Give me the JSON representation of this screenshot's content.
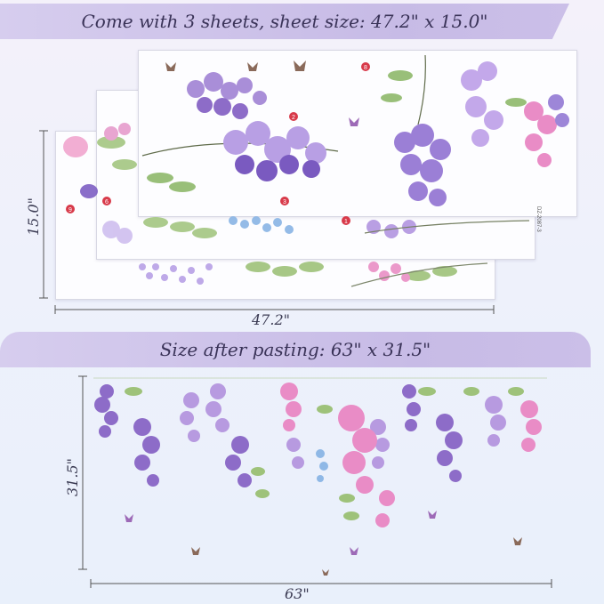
{
  "top_banner": {
    "text": "Come with 3 sheets, sheet size: 47.2\" x 15.0\""
  },
  "sheets_view": {
    "height_label": "15.0\"",
    "width_label": "47.2\"",
    "sheet_markers": [
      "8",
      "2",
      "3",
      "1",
      "9",
      "6"
    ],
    "sheet_code": "DZ-2087-3"
  },
  "middle_banner": {
    "text": "Size after pasting: 63\" x 31.5\""
  },
  "pasted_view": {
    "height_label": "31.5\"",
    "width_label": "63\""
  },
  "colors": {
    "banner": "#c9bde7",
    "wisteria_purple": "#8d6cc8",
    "wisteria_light": "#b79ae0",
    "wisteria_pink": "#e98cc6",
    "leaf_green": "#8db36a",
    "marker_red": "#d83a4a"
  }
}
